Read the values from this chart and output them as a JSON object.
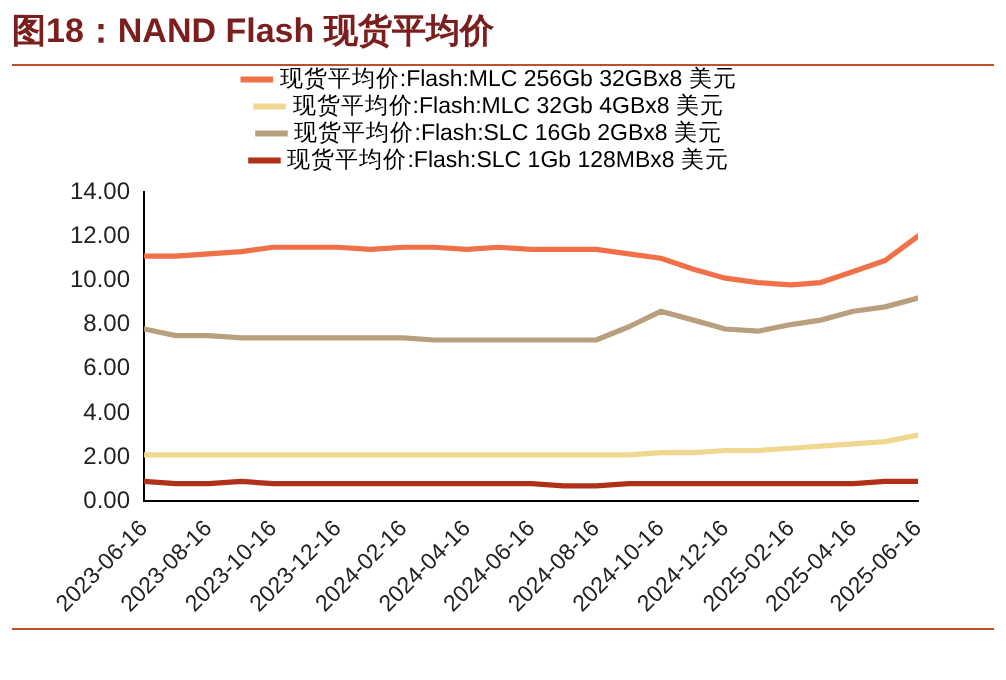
{
  "chart_data": {
    "type": "line",
    "title": "图18：NAND Flash 现货平均价",
    "x": [
      "2023-06-16",
      "2023-07-16",
      "2023-08-16",
      "2023-09-16",
      "2023-10-16",
      "2023-11-16",
      "2023-12-16",
      "2024-01-16",
      "2024-02-16",
      "2024-03-16",
      "2024-04-16",
      "2024-05-16",
      "2024-06-16",
      "2024-07-16",
      "2024-08-16",
      "2024-09-16",
      "2024-10-16",
      "2024-11-16",
      "2024-12-16",
      "2025-01-16",
      "2025-02-16",
      "2025-03-16",
      "2025-04-16",
      "2025-05-16",
      "2025-06-16"
    ],
    "series": [
      {
        "name": "现货平均价:Flash:MLC 256Gb 32GBx8 美元",
        "color": "#f07048",
        "values": [
          11.1,
          11.1,
          11.2,
          11.3,
          11.5,
          11.5,
          11.5,
          11.4,
          11.5,
          11.5,
          11.4,
          11.5,
          11.4,
          11.4,
          11.4,
          11.2,
          11.0,
          10.5,
          10.1,
          9.9,
          9.8,
          9.9,
          10.4,
          10.9,
          12.0
        ]
      },
      {
        "name": "现货平均价:Flash:MLC 32Gb 4GBx8 美元",
        "color": "#f0d890",
        "values": [
          2.1,
          2.1,
          2.1,
          2.1,
          2.1,
          2.1,
          2.1,
          2.1,
          2.1,
          2.1,
          2.1,
          2.1,
          2.1,
          2.1,
          2.1,
          2.1,
          2.2,
          2.2,
          2.3,
          2.3,
          2.4,
          2.5,
          2.6,
          2.7,
          3.0
        ]
      },
      {
        "name": "现货平均价:Flash:SLC 16Gb 2GBx8 美元",
        "color": "#b8a07e",
        "values": [
          7.8,
          7.5,
          7.5,
          7.4,
          7.4,
          7.4,
          7.4,
          7.4,
          7.4,
          7.3,
          7.3,
          7.3,
          7.3,
          7.3,
          7.3,
          7.9,
          8.6,
          8.2,
          7.8,
          7.7,
          8.0,
          8.2,
          8.6,
          8.8,
          9.2
        ]
      },
      {
        "name": "现货平均价:Flash:SLC 1Gb 128MBx8 美元",
        "color": "#b03018",
        "values": [
          0.9,
          0.8,
          0.8,
          0.9,
          0.8,
          0.8,
          0.8,
          0.8,
          0.8,
          0.8,
          0.8,
          0.8,
          0.8,
          0.7,
          0.7,
          0.8,
          0.8,
          0.8,
          0.8,
          0.8,
          0.8,
          0.8,
          0.8,
          0.9,
          0.9
        ]
      }
    ],
    "xticks": [
      "2023-06-16",
      "2023-08-16",
      "2023-10-16",
      "2023-12-16",
      "2024-02-16",
      "2024-04-16",
      "2024-06-16",
      "2024-08-16",
      "2024-10-16",
      "2024-12-16",
      "2025-02-16",
      "2025-04-16",
      "2025-06-16"
    ],
    "xlim": [
      "2023-06-16",
      "2025-06-16"
    ],
    "ylim": [
      0,
      14
    ],
    "yticks": [
      {
        "value": 0,
        "label": "0.00"
      },
      {
        "value": 2,
        "label": "2.00"
      },
      {
        "value": 4,
        "label": "4.00"
      },
      {
        "value": 6,
        "label": "6.00"
      },
      {
        "value": 8,
        "label": "8.00"
      },
      {
        "value": 10,
        "label": "10.00"
      },
      {
        "value": 12,
        "label": "12.00"
      },
      {
        "value": 14,
        "label": "14.00"
      }
    ],
    "grid": false,
    "legend": "top",
    "marker": "none",
    "line_style": "solid"
  }
}
